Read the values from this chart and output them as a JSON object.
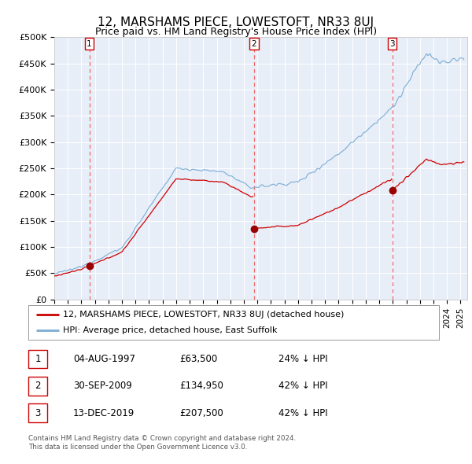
{
  "title": "12, MARSHAMS PIECE, LOWESTOFT, NR33 8UJ",
  "subtitle": "Price paid vs. HM Land Registry's House Price Index (HPI)",
  "plot_bg_color": "#e8eef8",
  "ylim": [
    0,
    500000
  ],
  "yticks": [
    0,
    50000,
    100000,
    150000,
    200000,
    250000,
    300000,
    350000,
    400000,
    450000,
    500000
  ],
  "ytick_labels": [
    "£0",
    "£50K",
    "£100K",
    "£150K",
    "£200K",
    "£250K",
    "£300K",
    "£350K",
    "£400K",
    "£450K",
    "£500K"
  ],
  "xlim_start": 1995.0,
  "xlim_end": 2025.5,
  "sale_dates": [
    1997.587,
    2009.748,
    2019.956
  ],
  "sale_prices": [
    63500,
    134950,
    207500
  ],
  "sale_labels": [
    "1",
    "2",
    "3"
  ],
  "red_line_color": "#cc0000",
  "blue_line_color": "#7aadd4",
  "dashed_line_color": "#ee5555",
  "marker_color": "#990000",
  "legend_label_red": "12, MARSHAMS PIECE, LOWESTOFT, NR33 8UJ (detached house)",
  "legend_label_blue": "HPI: Average price, detached house, East Suffolk",
  "table_rows": [
    [
      "1",
      "04-AUG-1997",
      "£63,500",
      "24% ↓ HPI"
    ],
    [
      "2",
      "30-SEP-2009",
      "£134,950",
      "42% ↓ HPI"
    ],
    [
      "3",
      "13-DEC-2019",
      "£207,500",
      "42% ↓ HPI"
    ]
  ],
  "footer": "Contains HM Land Registry data © Crown copyright and database right 2024.\nThis data is licensed under the Open Government Licence v3.0.",
  "title_fontsize": 11,
  "subtitle_fontsize": 9,
  "tick_fontsize": 8,
  "legend_fontsize": 8,
  "table_fontsize": 8.5
}
